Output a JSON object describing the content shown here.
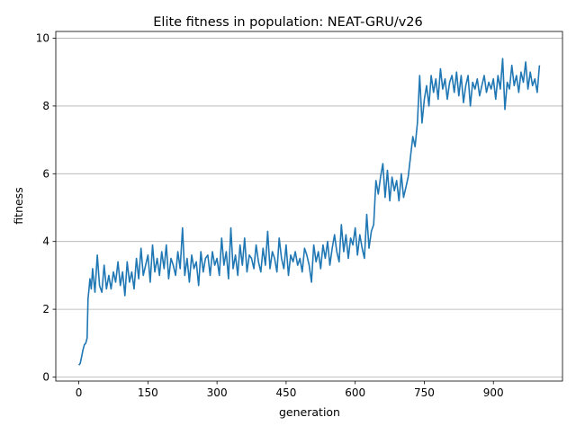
{
  "chart_data": {
    "type": "line",
    "title": "Elite fitness in population: NEAT-GRU/v26",
    "xlabel": "generation",
    "ylabel": "fitness",
    "xlim": [
      -50,
      1050
    ],
    "ylim": [
      -0.12,
      10.2
    ],
    "xticks": [
      0,
      150,
      300,
      450,
      600,
      750,
      900
    ],
    "yticks": [
      0,
      2,
      4,
      6,
      8,
      10
    ],
    "grid": "horizontal",
    "legend": "none",
    "series": [
      {
        "color": "#1f77b4",
        "x": [
          0,
          3,
          6,
          9,
          12,
          15,
          18,
          20,
          22,
          24,
          27,
          30,
          35,
          40,
          45,
          50,
          55,
          60,
          65,
          70,
          75,
          80,
          85,
          90,
          95,
          100,
          105,
          110,
          115,
          120,
          125,
          130,
          135,
          140,
          145,
          150,
          155,
          160,
          165,
          170,
          175,
          180,
          185,
          190,
          195,
          200,
          205,
          210,
          215,
          220,
          225,
          230,
          235,
          240,
          245,
          250,
          255,
          260,
          265,
          270,
          275,
          280,
          285,
          290,
          295,
          300,
          305,
          310,
          315,
          320,
          325,
          330,
          335,
          340,
          345,
          350,
          355,
          360,
          365,
          370,
          375,
          380,
          385,
          390,
          395,
          400,
          405,
          410,
          415,
          420,
          425,
          430,
          435,
          440,
          445,
          450,
          455,
          460,
          465,
          470,
          475,
          480,
          485,
          490,
          495,
          500,
          505,
          510,
          515,
          520,
          525,
          530,
          535,
          540,
          545,
          550,
          555,
          560,
          565,
          570,
          575,
          580,
          585,
          590,
          595,
          600,
          605,
          610,
          615,
          620,
          625,
          630,
          635,
          640,
          645,
          650,
          655,
          660,
          665,
          670,
          675,
          680,
          685,
          690,
          695,
          700,
          705,
          710,
          715,
          720,
          725,
          730,
          735,
          740,
          745,
          750,
          755,
          760,
          765,
          770,
          775,
          780,
          785,
          790,
          795,
          800,
          805,
          810,
          815,
          820,
          825,
          830,
          835,
          840,
          845,
          850,
          855,
          860,
          865,
          870,
          875,
          880,
          885,
          890,
          895,
          900,
          905,
          910,
          915,
          920,
          925,
          930,
          935,
          940,
          945,
          950,
          955,
          960,
          965,
          970,
          975,
          980,
          985,
          990,
          995,
          1000
        ],
        "y": [
          0.35,
          0.4,
          0.6,
          0.8,
          0.95,
          1.0,
          1.15,
          2.3,
          2.6,
          2.9,
          2.6,
          3.2,
          2.5,
          3.6,
          2.7,
          2.5,
          3.3,
          2.6,
          3.0,
          2.6,
          3.1,
          2.8,
          3.4,
          2.7,
          3.1,
          2.4,
          3.4,
          2.8,
          3.1,
          2.6,
          3.5,
          2.9,
          3.8,
          3.0,
          3.3,
          3.6,
          2.8,
          3.9,
          3.1,
          3.5,
          3.0,
          3.7,
          3.2,
          3.9,
          2.9,
          3.5,
          3.3,
          3.0,
          3.7,
          3.2,
          4.4,
          3.0,
          3.5,
          2.8,
          3.6,
          3.2,
          3.4,
          2.7,
          3.7,
          3.1,
          3.5,
          3.6,
          3.0,
          3.7,
          3.3,
          3.5,
          3.0,
          4.1,
          3.3,
          3.7,
          2.9,
          4.4,
          3.2,
          3.6,
          3.0,
          3.9,
          3.3,
          4.1,
          3.1,
          3.6,
          3.5,
          3.2,
          3.9,
          3.4,
          3.1,
          3.8,
          3.3,
          4.3,
          3.2,
          3.7,
          3.5,
          3.1,
          4.1,
          3.5,
          3.2,
          3.9,
          3.0,
          3.6,
          3.4,
          3.7,
          3.3,
          3.5,
          3.1,
          3.8,
          3.6,
          3.3,
          2.8,
          3.9,
          3.4,
          3.7,
          3.2,
          3.9,
          3.5,
          4.0,
          3.3,
          3.8,
          4.2,
          3.7,
          3.4,
          4.5,
          3.7,
          4.2,
          3.5,
          4.1,
          3.9,
          4.4,
          3.6,
          4.2,
          3.8,
          3.5,
          4.8,
          3.8,
          4.3,
          4.5,
          5.8,
          5.4,
          5.9,
          6.3,
          5.3,
          6.1,
          5.2,
          5.9,
          5.5,
          5.8,
          5.2,
          6.0,
          5.3,
          5.6,
          5.9,
          6.5,
          7.1,
          6.8,
          7.5,
          8.9,
          7.5,
          8.2,
          8.6,
          8.0,
          8.9,
          8.4,
          8.8,
          8.2,
          9.1,
          8.5,
          8.8,
          8.2,
          8.7,
          8.9,
          8.4,
          9.0,
          8.3,
          8.9,
          8.1,
          8.6,
          8.9,
          8.0,
          8.7,
          8.5,
          8.8,
          8.3,
          8.6,
          8.9,
          8.4,
          8.7,
          8.5,
          8.8,
          8.2,
          8.9,
          8.5,
          9.4,
          7.9,
          8.7,
          8.5,
          9.2,
          8.6,
          8.9,
          8.4,
          9.0,
          8.7,
          9.3,
          8.5,
          9.0,
          8.6,
          8.8,
          8.4,
          9.2
        ]
      }
    ]
  }
}
